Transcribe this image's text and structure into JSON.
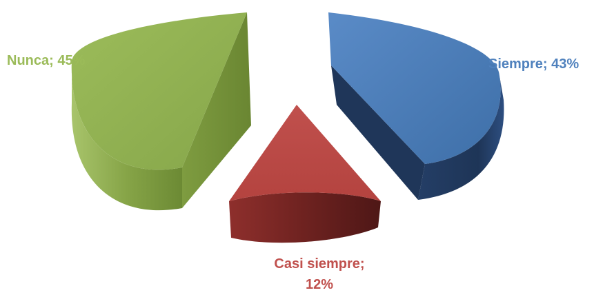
{
  "chart_data": {
    "type": "pie",
    "variant": "3d-exploded",
    "title": "",
    "legend": "none",
    "slices": [
      {
        "label": "Siempre",
        "value": 43,
        "display": "Siempre; 43%",
        "color": "#4F81BD",
        "side_color": "#1F3558"
      },
      {
        "label": "Casi siempre",
        "value": 12,
        "display_line1": "Casi siempre;",
        "display_line2": "12%",
        "color": "#C0504D",
        "side_color": "#5E1F1E"
      },
      {
        "label": "Nunca",
        "value": 45,
        "display": "Nunca; 45%",
        "color": "#9BBB59",
        "side_color": "#5F7A2C"
      }
    ]
  }
}
